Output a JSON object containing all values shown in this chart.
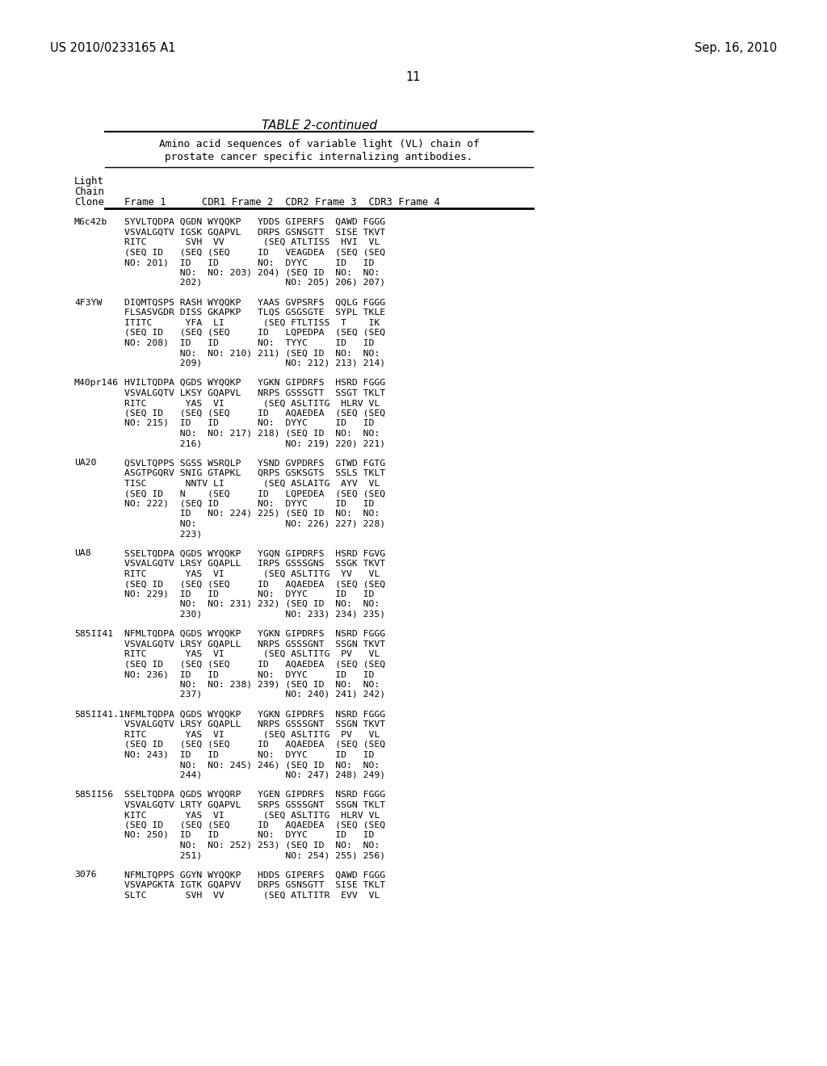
{
  "background_color": "#ffffff",
  "header_left": "US 2010/0233165 A1",
  "header_right": "Sep. 16, 2010",
  "page_number": "11",
  "table_title": "TABLE 2-continued",
  "table_subtitle_line1": "Amino acid sequences of variable light (VL) chain of",
  "table_subtitle_line2": "prostate cancer specific internalizing antibodies.",
  "content": [
    {
      "clone": "M6c42b",
      "lines": [
        "SYVLTQDPA QGDN WYQQKP   YDDS GIPERFS  QAWD FGGG",
        "VSVALGQTV IGSK GQAPVL   DRPS GSNSGTT  SISE TKVT",
        "RITC       SVH  VV       (SEQ ATLTISS  HVI  VL",
        "(SEQ ID   (SEQ (SEQ     ID   VEAGDEA  (SEQ (SEQ",
        "NO: 201)  ID   ID       NO:  DYYC     ID   ID",
        "          NO:  NO: 203) 204) (SEQ ID  NO:  NO:",
        "          202)               NO: 205) 206) 207)"
      ]
    },
    {
      "clone": "4F3YW",
      "lines": [
        "DIQMTQSPS RASH WYQQKP   YAAS GVPSRFS  QQLG FGGG",
        "FLSASVGDR DISS GKAPKP   TLQS GSGSGTE  SYPL TKLE",
        "ITITC      YFA  LI       (SEQ FTLTISS  T    IK",
        "(SEQ ID   (SEQ (SEQ     ID   LQPEDPA  (SEQ (SEQ",
        "NO: 208)  ID   ID       NO:  TYYC     ID   ID",
        "          NO:  NO: 210) 211) (SEQ ID  NO:  NO:",
        "          209)               NO: 212) 213) 214)"
      ]
    },
    {
      "clone": "M40pr146",
      "lines": [
        "HVILTQDPA QGDS WYQQKP   YGKN GIPDRFS  HSRD FGGG",
        "VSVALGQTV LKSY GQAPVL   NRPS GSSSGTT  SSGT TKLT",
        "RITC       YAS  VI       (SEQ ASLTITG  HLRV VL",
        "(SEQ ID   (SEQ (SEQ     ID   AQAEDEA  (SEQ (SEQ",
        "NO: 215)  ID   ID       NO:  DYYC     ID   ID",
        "          NO:  NO: 217) 218) (SEQ ID  NO:  NO:",
        "          216)               NO: 219) 220) 221)"
      ]
    },
    {
      "clone": "UA20",
      "lines": [
        "QSVLTQPPS SGSS WSRQLP   YSND GVPDRFS  GTWD FGTG",
        "ASGTPGQRV SNIG GTAPKL   QRPS GSKSGTS  SSLS TKLT",
        "TISC       NNTV LI       (SEQ ASLAITG  AYV  VL",
        "(SEQ ID   N    (SEQ     ID   LQPEDEA  (SEQ (SEQ",
        "NO: 222)  (SEQ ID       NO:  DYYC     ID   ID",
        "          ID   NO: 224) 225) (SEQ ID  NO:  NO:",
        "          NO:                NO: 226) 227) 228)",
        "          223)"
      ]
    },
    {
      "clone": "UA8",
      "lines": [
        "SSELTQDPA QGDS WYQQKP   YGQN GIPDRFS  HSRD FGVG",
        "VSVALGQTV LRSY GQAPLL   IRPS GSSSGNS  SSGK TKVT",
        "RITC       YAS  VI       (SEQ ASLTITG  YV   VL",
        "(SEQ ID   (SEQ (SEQ     ID   AQAEDEA  (SEQ (SEQ",
        "NO: 229)  ID   ID       NO:  DYYC     ID   ID",
        "          NO:  NO: 231) 232) (SEQ ID  NO:  NO:",
        "          230)               NO: 233) 234) 235)"
      ]
    },
    {
      "clone": "585II41",
      "lines": [
        "NFMLTQDPA QGDS WYQQKP   YGKN GIPDRFS  NSRD FGGG",
        "VSVALGQTV LRSY GQAPLL   NRPS GSSSGNT  SSGN TKVT",
        "RITC       YAS  VI       (SEQ ASLTITG  PV   VL",
        "(SEQ ID   (SEQ (SEQ     ID   AQAEDEA  (SEQ (SEQ",
        "NO: 236)  ID   ID       NO:  DYYC     ID   ID",
        "          NO:  NO: 238) 239) (SEQ ID  NO:  NO:",
        "          237)               NO: 240) 241) 242)"
      ]
    },
    {
      "clone": "585II41.1",
      "lines": [
        "NFMLTQDPA QGDS WYQQKP   YGKN GIPDRFS  NSRD FGGG",
        "VSVALGQTV LRSY GQAPLL   NRPS GSSSGNT  SSGN TKVT",
        "RITC       YAS  VI       (SEQ ASLTITG  PV   VL",
        "(SEQ ID   (SEQ (SEQ     ID   AQAEDEA  (SEQ (SEQ",
        "NO: 243)  ID   ID       NO:  DYYC     ID   ID",
        "          NO:  NO: 245) 246) (SEQ ID  NO:  NO:",
        "          244)               NO: 247) 248) 249)"
      ]
    },
    {
      "clone": "585II56",
      "lines": [
        "SSELTQDPA QGDS WYQQRP   YGEN GIPDRFS  NSRD FGGG",
        "VSVALGQTV LRTY GQAPVL   SRPS GSSSGNT  SSGN TKLT",
        "KITC       YAS  VI       (SEQ ASLTITG  HLRV VL",
        "(SEQ ID   (SEQ (SEQ     ID   AQAEDEA  (SEQ (SEQ",
        "NO: 250)  ID   ID       NO:  DYYC     ID   ID",
        "          NO:  NO: 252) 253) (SEQ ID  NO:  NO:",
        "          251)               NO: 254) 255) 256)"
      ]
    },
    {
      "clone": "3076",
      "lines": [
        "NFMLTQPPS GGYN WYQQKP   HDDS GIPERFS  QAWD FGGG",
        "VSVAPGKTA IGTK GQAPVV   DRPS GSNSGTT  SISE TKLT",
        "SLTC       SVH  VV       (SEQ ATLTITR  EVV  VL"
      ]
    }
  ]
}
